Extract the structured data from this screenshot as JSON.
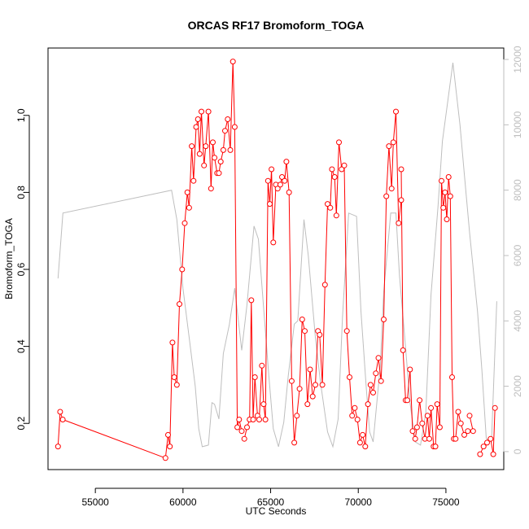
{
  "chart_data": {
    "type": "line",
    "title": "ORCAS RF17 Bromoform_TOGA",
    "xlabel": "UTC Seconds",
    "ylabel": "Bromoform_TOGA",
    "xlim": [
      52300,
      78300
    ],
    "ylim": [
      0.08,
      1.175
    ],
    "y2lim": [
      -550,
      12350
    ],
    "x_ticks": [
      55000,
      60000,
      65000,
      70000,
      75000
    ],
    "y_ticks": [
      0.2,
      0.4,
      0.6,
      0.8,
      1.0
    ],
    "y_tick_labels": [
      "0.2",
      "0.4",
      "0.6",
      "0.8",
      "1.0"
    ],
    "y2_ticks": [
      0,
      2000,
      4000,
      6000,
      8000,
      10000,
      12000
    ],
    "grid": false,
    "series": [
      {
        "color": "#ff0000",
        "marker": "open-circle",
        "segments": [
          {
            "x": [
              52870,
              52990,
              53140
            ],
            "y": [
              0.14,
              0.23,
              0.21
            ]
          },
          {
            "x": [
              53140,
              59000
            ],
            "y": [
              0.21,
              0.11
            ]
          },
          {
            "x": [
              59000,
              59150,
              59250,
              59400,
              59500,
              59650,
              59800,
              59950,
              60100,
              60250,
              60350,
              60500,
              60600,
              60750,
              60850,
              60950,
              61050,
              61200,
              61300,
              61450,
              61600,
              61700,
              61800,
              61950,
              62050,
              62150,
              62300,
              62400,
              62550,
              62700,
              62850,
              62950,
              63100,
              63200,
              63350
            ],
            "y": [
              0.11,
              0.17,
              0.14,
              0.41,
              0.32,
              0.3,
              0.51,
              0.6,
              0.72,
              0.8,
              0.76,
              0.92,
              0.83,
              0.97,
              0.99,
              0.9,
              1.01,
              0.87,
              0.92,
              1.01,
              0.81,
              0.93,
              0.89,
              0.85,
              0.85,
              0.88,
              0.91,
              0.96,
              0.99,
              0.91,
              1.14,
              0.97,
              0.19,
              0.21,
              0.18
            ]
          },
          {
            "x": [
              63500,
              63650,
              63800,
              63900,
              64000,
              64100,
              64250,
              64350,
              64500,
              64600,
              64700,
              64850,
              64950,
              65050,
              65150,
              65300,
              65400,
              65550,
              65650,
              65800,
              65900,
              66050,
              66200,
              66350,
              66500,
              66650,
              66800,
              66950,
              67100,
              67250,
              67400,
              67550,
              67700,
              67800,
              67950,
              68100,
              68250,
              68400,
              68500,
              68650,
              68750,
              68900,
              69050,
              69200,
              69350,
              69500,
              69650,
              69800,
              69950,
              70100,
              70250,
              70400,
              70550,
              70700,
              70850,
              71000,
              71150,
              71300,
              71450,
              71600,
              71750,
              71900,
              72000,
              72150,
              72300,
              72450
            ],
            "y": [
              0.16,
              0.19,
              0.21,
              0.52,
              0.21,
              0.32,
              0.22,
              0.21,
              0.35,
              0.25,
              0.21,
              0.83,
              0.77,
              0.86,
              0.67,
              0.82,
              0.81,
              0.82,
              0.84,
              0.83,
              0.88,
              0.8,
              0.31,
              0.15,
              0.22,
              0.29,
              0.47,
              0.44,
              0.25,
              0.34,
              0.27,
              0.3,
              0.44,
              0.43,
              0.3,
              0.56,
              0.77,
              0.76,
              0.86,
              0.84,
              0.74,
              0.93,
              0.86,
              0.87,
              0.44,
              0.32,
              0.22,
              0.24,
              0.21,
              0.15,
              0.17,
              0.14,
              0.25,
              0.3,
              0.28,
              0.33,
              0.37,
              0.31,
              0.47,
              0.79,
              0.92,
              0.81,
              0.93,
              1.01,
              0.72,
              0.78
            ]
          },
          {
            "x": [
              72450,
              72550,
              72700,
              72800,
              72950,
              73100,
              73250,
              73350,
              73500,
              73650,
              73800,
              73950,
              74050,
              74150,
              74300,
              74400,
              74500,
              74650,
              74750,
              74850,
              74950,
              75050,
              75150,
              75250,
              75350,
              75450
            ],
            "y": [
              0.86,
              0.39,
              0.26,
              0.26,
              0.34,
              0.18,
              0.16,
              0.19,
              0.26,
              0.2,
              0.16,
              0.22,
              0.16,
              0.24,
              0.14,
              0.14,
              0.25,
              0.19,
              0.83,
              0.76,
              0.8,
              0.73,
              0.84,
              0.79,
              0.32,
              0.16
            ]
          },
          {
            "x": [
              75450,
              75550,
              75700,
              75850,
              76050,
              76250
            ],
            "y": [
              0.16,
              0.16,
              0.23,
              0.2,
              0.17,
              0.18
            ]
          },
          {
            "x": [
              76350,
              76550
            ],
            "y": [
              0.22,
              0.18
            ]
          },
          {
            "x": [
              76950,
              77150
            ],
            "y": [
              0.12,
              0.14
            ]
          },
          {
            "x": [
              77350,
              77550,
              77700,
              77800
            ],
            "y": [
              0.15,
              0.16,
              0.12,
              0.24
            ]
          }
        ]
      },
      {
        "color": "#bebebe",
        "axis": "right",
        "segments": [
          {
            "x": [
              52870,
              53150,
              59350,
              59650,
              60000,
              60350,
              60700,
              60900,
              61100,
              61450,
              61650,
              61800,
              62050,
              62300,
              62650,
              62950,
              63350,
              63650,
              64050,
              64300,
              64600,
              64900,
              65150,
              65450,
              65750,
              66000,
              66350,
              66550,
              66900,
              67150,
              67550,
              67850,
              68250,
              68550,
              68850,
              69100,
              69450,
              69900,
              70150,
              70450,
              70650,
              70850,
              71250,
              71450,
              71850,
              72150,
              72350,
              72650,
              72950,
              73250,
              73550,
              73850,
              74150,
              74550,
              74800,
              75050,
              75400,
              75800,
              76050,
              76350,
              76800,
              77050,
              77300,
              77600,
              77900
            ],
            "y": [
              5300,
              7300,
              8000,
              7100,
              5000,
              3500,
              2000,
              700,
              150,
              200,
              1500,
              1450,
              1000,
              3000,
              3900,
              5000,
              3100,
              4500,
              6900,
              6500,
              4400,
              2300,
              700,
              150,
              900,
              2300,
              3900,
              4000,
              7100,
              6000,
              3500,
              2100,
              600,
              150,
              1000,
              4100,
              7300,
              7200,
              4300,
              2000,
              600,
              300,
              2600,
              4900,
              7300,
              7300,
              5400,
              3500,
              1500,
              300,
              200,
              1200,
              4800,
              7500,
              9500,
              10500,
              11900,
              10000,
              8500,
              6700,
              4300,
              2500,
              400,
              300,
              4600
            ]
          }
        ]
      }
    ]
  }
}
